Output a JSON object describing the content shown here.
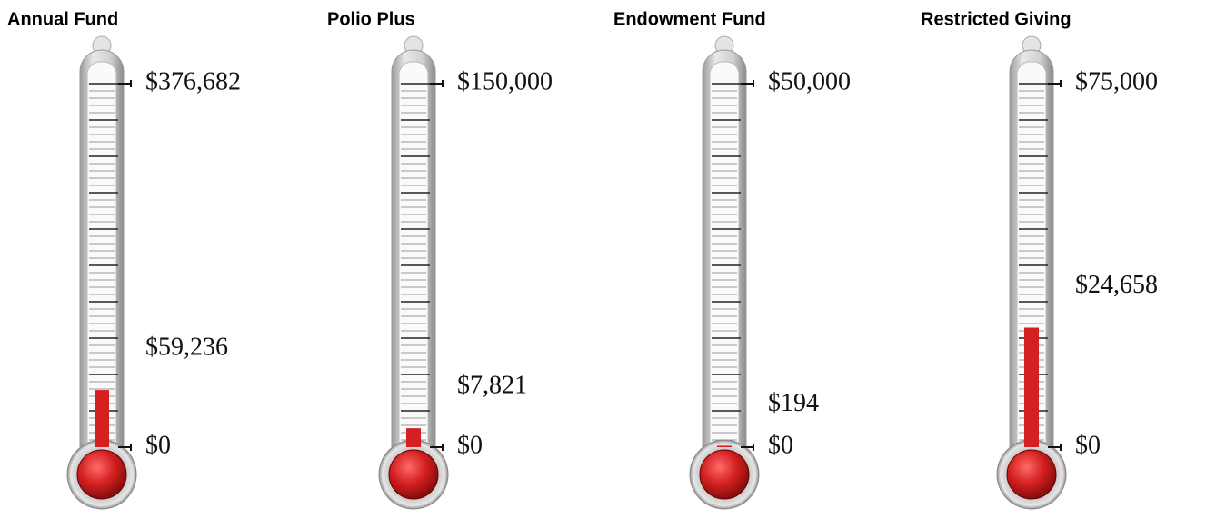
{
  "chart_data": [
    {
      "type": "thermometer",
      "title": "Annual Fund",
      "values": [
        59236
      ],
      "value_labels": [
        "$59,236"
      ],
      "color": "#d42020",
      "ylim": [
        0,
        376682
      ],
      "yticks": [
        {
          "value": 0,
          "label": "$0"
        },
        {
          "value": 376682,
          "label": "$376,682"
        }
      ]
    },
    {
      "type": "thermometer",
      "title": "Polio Plus",
      "values": [
        7821
      ],
      "value_labels": [
        "$7,821"
      ],
      "color": "#d42020",
      "ylim": [
        0,
        150000
      ],
      "yticks": [
        {
          "value": 0,
          "label": "$0"
        },
        {
          "value": 150000,
          "label": "$150,000"
        }
      ]
    },
    {
      "type": "thermometer",
      "title": "Endowment Fund",
      "values": [
        194
      ],
      "value_labels": [
        "$194"
      ],
      "color": "#d42020",
      "ylim": [
        0,
        50000
      ],
      "yticks": [
        {
          "value": 0,
          "label": "$0"
        },
        {
          "value": 50000,
          "label": "$50,000"
        }
      ]
    },
    {
      "type": "thermometer",
      "title": "Restricted Giving",
      "values": [
        24658
      ],
      "value_labels": [
        "$24,658"
      ],
      "color": "#d42020",
      "ylim": [
        0,
        75000
      ],
      "yticks": [
        {
          "value": 0,
          "label": "$0"
        },
        {
          "value": 75000,
          "label": "$75,000"
        }
      ]
    }
  ]
}
